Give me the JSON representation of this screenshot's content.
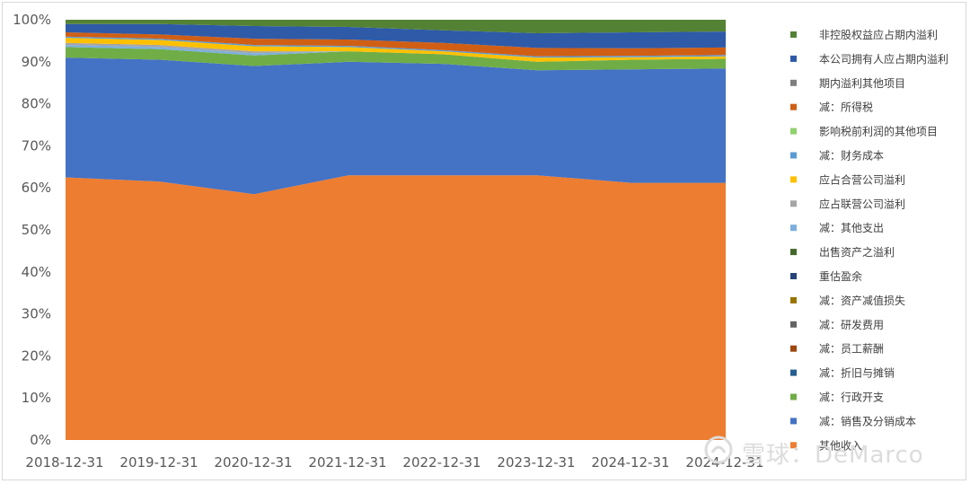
{
  "watermark": "雪球：DeMarco",
  "chart_data": {
    "type": "area",
    "stacked": "percent",
    "categories": [
      "2018-12-31",
      "2019-12-31",
      "2020-12-31",
      "2021-12-31",
      "2022-12-31",
      "2023-12-31",
      "2024-12-31",
      "2024-12-31"
    ],
    "ylim": [
      0,
      100
    ],
    "yticks": [
      "0%",
      "10%",
      "20%",
      "30%",
      "40%",
      "50%",
      "60%",
      "70%",
      "80%",
      "90%",
      "100%"
    ],
    "legend_position": "right",
    "series": [
      {
        "name": "其他收入",
        "color": "#ED7D31",
        "values": [
          62.5,
          61.5,
          58.5,
          63.0,
          63.0,
          63.0,
          61.2,
          61.2
        ]
      },
      {
        "name": "减：销售及分销成本",
        "color": "#4472C4",
        "values": [
          28.5,
          29.0,
          30.5,
          27.0,
          26.5,
          25.0,
          27.0,
          27.2
        ]
      },
      {
        "name": "减：行政开支",
        "color": "#70AD47",
        "values": [
          2.5,
          2.5,
          2.5,
          2.5,
          2.3,
          2.0,
          2.3,
          2.3
        ]
      },
      {
        "name": "减：折旧与摊销",
        "color": "#255E91",
        "values": [
          0.0,
          0.0,
          0.0,
          0.0,
          0.0,
          0.0,
          0.0,
          0.0
        ]
      },
      {
        "name": "减：员工薪酬",
        "color": "#9E480E",
        "values": [
          0.0,
          0.0,
          0.0,
          0.0,
          0.0,
          0.0,
          0.0,
          0.0
        ]
      },
      {
        "name": "减：研发费用",
        "color": "#636363",
        "values": [
          0.0,
          0.0,
          0.0,
          0.0,
          0.0,
          0.0,
          0.0,
          0.0
        ]
      },
      {
        "name": "减：资产减值损失",
        "color": "#997300",
        "values": [
          0.0,
          0.0,
          0.0,
          0.0,
          0.0,
          0.0,
          0.0,
          0.0
        ]
      },
      {
        "name": "重估盈余",
        "color": "#264478",
        "values": [
          0.0,
          0.0,
          0.0,
          0.0,
          0.0,
          0.0,
          0.0,
          0.0
        ]
      },
      {
        "name": "出售资产之溢利",
        "color": "#43682B",
        "values": [
          0.0,
          0.0,
          0.0,
          0.0,
          0.0,
          0.0,
          0.0,
          0.0
        ]
      },
      {
        "name": "减：其他支出",
        "color": "#7CAFDD",
        "values": [
          0.5,
          0.5,
          0.5,
          0.0,
          0.0,
          0.0,
          0.0,
          0.0
        ]
      },
      {
        "name": "应占联营公司溢利",
        "color": "#A5A5A5",
        "values": [
          0.5,
          0.5,
          0.5,
          0.0,
          0.0,
          0.0,
          0.0,
          0.0
        ]
      },
      {
        "name": "应占合营公司溢利",
        "color": "#FFC000",
        "values": [
          1.2,
          1.2,
          1.2,
          1.0,
          0.7,
          1.0,
          0.6,
          0.6
        ]
      },
      {
        "name": "减：财务成本",
        "color": "#5B9BD5",
        "values": [
          0.3,
          0.3,
          0.3,
          0.3,
          0.3,
          0.3,
          0.3,
          0.3
        ]
      },
      {
        "name": "影响税前利润的其他项目",
        "color": "#8FD16B",
        "values": [
          0.0,
          0.0,
          0.0,
          0.0,
          0.0,
          0.0,
          0.0,
          0.0
        ]
      },
      {
        "name": "减：所得税",
        "color": "#D05F15",
        "values": [
          1.0,
          1.0,
          1.5,
          1.5,
          1.7,
          2.0,
          1.8,
          1.8
        ]
      },
      {
        "name": "期内溢利其他项目",
        "color": "#7F7F7F",
        "values": [
          0.0,
          0.0,
          0.0,
          0.0,
          0.0,
          0.0,
          0.0,
          0.0
        ]
      },
      {
        "name": "本公司拥有人应占期内溢利",
        "color": "#2E5AA8",
        "values": [
          2.0,
          2.5,
          3.0,
          3.0,
          3.0,
          3.5,
          3.8,
          3.8
        ]
      },
      {
        "name": "非控股权益应占期内溢利",
        "color": "#548235",
        "values": [
          1.0,
          1.0,
          1.5,
          1.7,
          2.5,
          3.2,
          3.0,
          2.8
        ]
      }
    ],
    "legend_order": [
      "非控股权益应占期内溢利",
      "本公司拥有人应占期内溢利",
      "期内溢利其他项目",
      "减：所得税",
      "影响税前利润的其他项目",
      "减：财务成本",
      "应占合营公司溢利",
      "应占联营公司溢利",
      "减：其他支出",
      "出售资产之溢利",
      "重估盈余",
      "减：资产减值损失",
      "减：研发费用",
      "减：员工薪酬",
      "减：折旧与摊销",
      "减：行政开支",
      "减：销售及分销成本",
      "其他收入"
    ]
  }
}
